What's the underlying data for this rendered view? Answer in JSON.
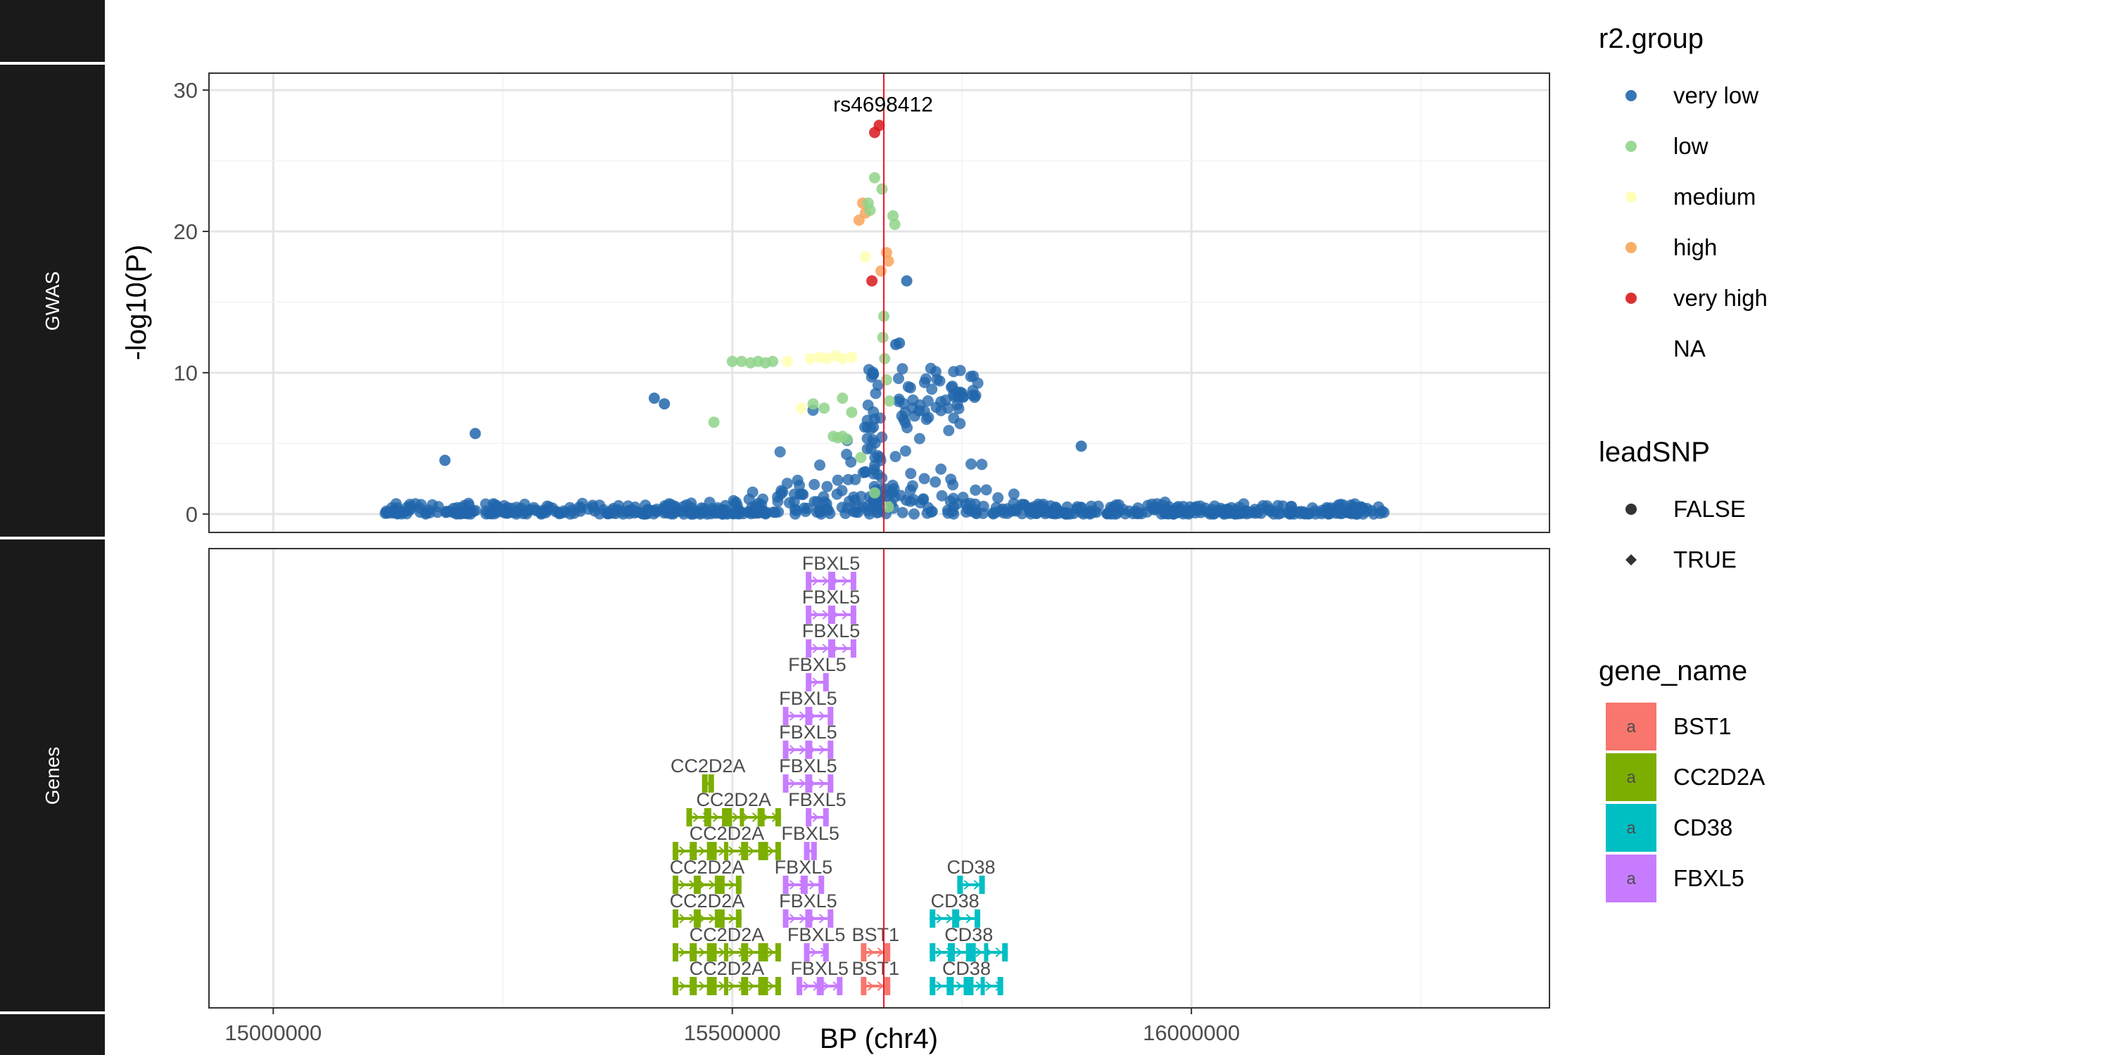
{
  "chart_data": {
    "type": "scatter",
    "panels": [
      "GWAS",
      "Genes"
    ],
    "xlabel": "BP (chr4)",
    "ylabel": "-log10(P)",
    "xlim": [
      14930000,
      16390000
    ],
    "ylim": [
      -1.3,
      31.2
    ],
    "x_ticks": [
      15000000,
      15500000,
      16000000
    ],
    "x_tick_labels": [
      "15000000",
      "15500000",
      "16000000"
    ],
    "y_ticks": [
      0,
      10,
      20,
      30
    ],
    "y_tick_labels": [
      "0",
      "10",
      "20",
      "30"
    ],
    "grid": true,
    "lead_snp": {
      "label": "rs4698412",
      "bp": 15665000,
      "p": 27.4
    },
    "vline_bp": 15665000,
    "colors": {
      "very low": "#2166AC",
      "low": "#8FD48A",
      "medium": "#FFFFB2",
      "high": "#F8A45A",
      "very high": "#D7191C",
      "BST1": "#F8766D",
      "CC2D2A": "#7CAE00",
      "CD38": "#00BFC4",
      "FBXL5": "#C77CFF",
      "strip": "#1A1A1A"
    },
    "background_snps": {
      "range": [
        15120000,
        16210000
      ],
      "count": 700,
      "peak_center": 15655000,
      "note": "approximate density of 'very low' r2 points near baseline"
    },
    "highlight_points": [
      {
        "bp": 15660000,
        "p": 27.5,
        "group": "very high"
      },
      {
        "bp": 15655000,
        "p": 27.0,
        "group": "very high"
      },
      {
        "bp": 15652000,
        "p": 16.5,
        "group": "very high"
      },
      {
        "bp": 15642000,
        "p": 22.0,
        "group": "high"
      },
      {
        "bp": 15645000,
        "p": 21.3,
        "group": "high"
      },
      {
        "bp": 15638000,
        "p": 20.8,
        "group": "high"
      },
      {
        "bp": 15668000,
        "p": 18.5,
        "group": "high"
      },
      {
        "bp": 15670000,
        "p": 17.9,
        "group": "high"
      },
      {
        "bp": 15662000,
        "p": 17.2,
        "group": "high"
      },
      {
        "bp": 15655000,
        "p": 23.8,
        "group": "low"
      },
      {
        "bp": 15663000,
        "p": 23.0,
        "group": "low"
      },
      {
        "bp": 15648000,
        "p": 22.0,
        "group": "low"
      },
      {
        "bp": 15650000,
        "p": 21.5,
        "group": "low"
      },
      {
        "bp": 15675000,
        "p": 21.1,
        "group": "low"
      },
      {
        "bp": 15677000,
        "p": 20.5,
        "group": "low"
      },
      {
        "bp": 15665000,
        "p": 14.0,
        "group": "low"
      },
      {
        "bp": 15664000,
        "p": 12.5,
        "group": "low"
      },
      {
        "bp": 15666000,
        "p": 11.0,
        "group": "low"
      },
      {
        "bp": 15668000,
        "p": 9.5,
        "group": "low"
      },
      {
        "bp": 15671000,
        "p": 8.0,
        "group": "low"
      },
      {
        "bp": 15500000,
        "p": 10.8,
        "group": "low"
      },
      {
        "bp": 15510000,
        "p": 10.8,
        "group": "low"
      },
      {
        "bp": 15520000,
        "p": 10.7,
        "group": "low"
      },
      {
        "bp": 15528000,
        "p": 10.8,
        "group": "low"
      },
      {
        "bp": 15536000,
        "p": 10.7,
        "group": "low"
      },
      {
        "bp": 15544000,
        "p": 10.8,
        "group": "low"
      },
      {
        "bp": 15588000,
        "p": 7.8,
        "group": "low"
      },
      {
        "bp": 15600000,
        "p": 7.5,
        "group": "low"
      },
      {
        "bp": 15620000,
        "p": 8.2,
        "group": "low"
      },
      {
        "bp": 15630000,
        "p": 7.2,
        "group": "low"
      },
      {
        "bp": 15610000,
        "p": 5.5,
        "group": "low"
      },
      {
        "bp": 15615000,
        "p": 5.4,
        "group": "low"
      },
      {
        "bp": 15620000,
        "p": 5.5,
        "group": "low"
      },
      {
        "bp": 15625000,
        "p": 5.3,
        "group": "low"
      },
      {
        "bp": 15480000,
        "p": 6.5,
        "group": "low"
      },
      {
        "bp": 15640000,
        "p": 4.0,
        "group": "low"
      },
      {
        "bp": 15655000,
        "p": 1.5,
        "group": "low"
      },
      {
        "bp": 15670000,
        "p": 0.5,
        "group": "low"
      },
      {
        "bp": 15645000,
        "p": 18.2,
        "group": "medium"
      },
      {
        "bp": 15585000,
        "p": 11.0,
        "group": "medium"
      },
      {
        "bp": 15595000,
        "p": 11.1,
        "group": "medium"
      },
      {
        "bp": 15603000,
        "p": 11.0,
        "group": "medium"
      },
      {
        "bp": 15612000,
        "p": 11.2,
        "group": "medium"
      },
      {
        "bp": 15620000,
        "p": 11.0,
        "group": "medium"
      },
      {
        "bp": 15630000,
        "p": 11.1,
        "group": "medium"
      },
      {
        "bp": 15560000,
        "p": 10.8,
        "group": "medium"
      },
      {
        "bp": 15575000,
        "p": 7.5,
        "group": "medium"
      },
      {
        "bp": 15690000,
        "p": 16.5,
        "group": "very low"
      },
      {
        "bp": 15678000,
        "p": 12.0,
        "group": "very low"
      },
      {
        "bp": 15682000,
        "p": 12.1,
        "group": "very low"
      },
      {
        "bp": 15220000,
        "p": 5.7,
        "group": "very low"
      },
      {
        "bp": 15187000,
        "p": 3.8,
        "group": "very low"
      },
      {
        "bp": 15880000,
        "p": 4.8,
        "group": "very low"
      },
      {
        "bp": 15415000,
        "p": 8.2,
        "group": "very low"
      },
      {
        "bp": 15426000,
        "p": 7.8,
        "group": "very low"
      }
    ],
    "gene_tracks": [
      {
        "gene": "FBXL5",
        "start": 15580000,
        "end": 15635000,
        "row": 0,
        "label": "FBXL5"
      },
      {
        "gene": "FBXL5",
        "start": 15580000,
        "end": 15635000,
        "row": 1,
        "label": "FBXL5"
      },
      {
        "gene": "FBXL5",
        "start": 15580000,
        "end": 15635000,
        "row": 2,
        "label": "FBXL5"
      },
      {
        "gene": "FBXL5",
        "start": 15580000,
        "end": 15605000,
        "row": 3,
        "label": "FBXL5"
      },
      {
        "gene": "FBXL5",
        "start": 15555000,
        "end": 15610000,
        "row": 4,
        "label": "FBXL5"
      },
      {
        "gene": "FBXL5",
        "start": 15555000,
        "end": 15610000,
        "row": 5,
        "label": "FBXL5"
      },
      {
        "gene": "FBXL5",
        "start": 15555000,
        "end": 15610000,
        "row": 6,
        "label": "FBXL5"
      },
      {
        "gene": "FBXL5",
        "start": 15580000,
        "end": 15605000,
        "row": 7,
        "label": "FBXL5"
      },
      {
        "gene": "FBXL5",
        "start": 15578000,
        "end": 15592000,
        "row": 8,
        "label": "FBXL5"
      },
      {
        "gene": "FBXL5",
        "start": 15555000,
        "end": 15600000,
        "row": 9,
        "label": "FBXL5"
      },
      {
        "gene": "FBXL5",
        "start": 15555000,
        "end": 15610000,
        "row": 10,
        "label": "FBXL5"
      },
      {
        "gene": "FBXL5",
        "start": 15578000,
        "end": 15605000,
        "row": 11,
        "label": "FBXL5"
      },
      {
        "gene": "FBXL5",
        "start": 15570000,
        "end": 15620000,
        "row": 12,
        "label": "FBXL5"
      },
      {
        "gene": "CC2D2A",
        "start": 15467000,
        "end": 15480000,
        "row": 6,
        "label": "CC2D2A"
      },
      {
        "gene": "CC2D2A",
        "start": 15450000,
        "end": 15553000,
        "row": 7,
        "label": "CC2D2A"
      },
      {
        "gene": "CC2D2A",
        "start": 15435000,
        "end": 15553000,
        "row": 8,
        "label": "CC2D2A"
      },
      {
        "gene": "CC2D2A",
        "start": 15435000,
        "end": 15510000,
        "row": 9,
        "label": "CC2D2A"
      },
      {
        "gene": "CC2D2A",
        "start": 15435000,
        "end": 15510000,
        "row": 10,
        "label": "CC2D2A"
      },
      {
        "gene": "CC2D2A",
        "start": 15435000,
        "end": 15553000,
        "row": 11,
        "label": "CC2D2A"
      },
      {
        "gene": "CC2D2A",
        "start": 15435000,
        "end": 15553000,
        "row": 12,
        "label": "CC2D2A"
      },
      {
        "gene": "BST1",
        "start": 15640000,
        "end": 15672000,
        "row": 11,
        "label": "BST1"
      },
      {
        "gene": "BST1",
        "start": 15640000,
        "end": 15672000,
        "row": 12,
        "label": "BST1"
      },
      {
        "gene": "CD38",
        "start": 15745000,
        "end": 15775000,
        "row": 9,
        "label": "CD38"
      },
      {
        "gene": "CD38",
        "start": 15715000,
        "end": 15770000,
        "row": 10,
        "label": "CD38"
      },
      {
        "gene": "CD38",
        "start": 15715000,
        "end": 15800000,
        "row": 11,
        "label": "CD38"
      },
      {
        "gene": "CD38",
        "start": 15715000,
        "end": 15795000,
        "row": 12,
        "label": "CD38"
      }
    ],
    "legends": {
      "r2": {
        "title": "r2.group",
        "items": [
          "very low",
          "low",
          "medium",
          "high",
          "very high",
          "NA"
        ]
      },
      "lead": {
        "title": "leadSNP",
        "items": [
          "FALSE",
          "TRUE"
        ]
      },
      "gene": {
        "title": "gene_name",
        "items": [
          "BST1",
          "CC2D2A",
          "CD38",
          "FBXL5"
        ],
        "key_text": "a"
      }
    }
  }
}
